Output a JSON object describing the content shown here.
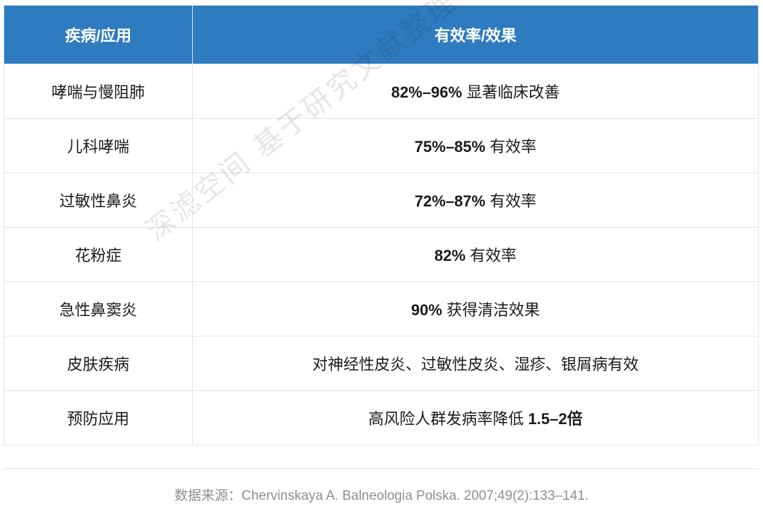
{
  "table": {
    "headers": [
      "疾病/应用",
      "有效率/效果"
    ],
    "rows": [
      {
        "condition": "哮喘与慢阻肺",
        "value": "82%–96%",
        "effect": " 显著临床改善"
      },
      {
        "condition": "儿科哮喘",
        "value": "75%–85%",
        "effect": " 有效率"
      },
      {
        "condition": "过敏性鼻炎",
        "value": "72%–87%",
        "effect": " 有效率"
      },
      {
        "condition": "花粉症",
        "value": "82%",
        "effect": " 有效率"
      },
      {
        "condition": "急性鼻窦炎",
        "value": "90%",
        "effect": " 获得清洁效果"
      },
      {
        "condition": "皮肤疾病",
        "value": "",
        "effect": "对神经性皮炎、过敏性皮炎、湿疹、银屑病有效"
      },
      {
        "condition": "预防应用",
        "value_prefix": "高风险人群发病率降低 ",
        "value": "1.5–2倍",
        "effect": ""
      }
    ]
  },
  "colors": {
    "header_bg": "#2f7bbf",
    "header_text": "#ffffff",
    "border": "#e3e3e3",
    "source_text": "#8f8f8f"
  },
  "watermark": "深滤空间 基于研究文献整理 ©",
  "source": "数据来源：Chervinskaya A. Balneologia Polska. 2007;49(2):133–141."
}
